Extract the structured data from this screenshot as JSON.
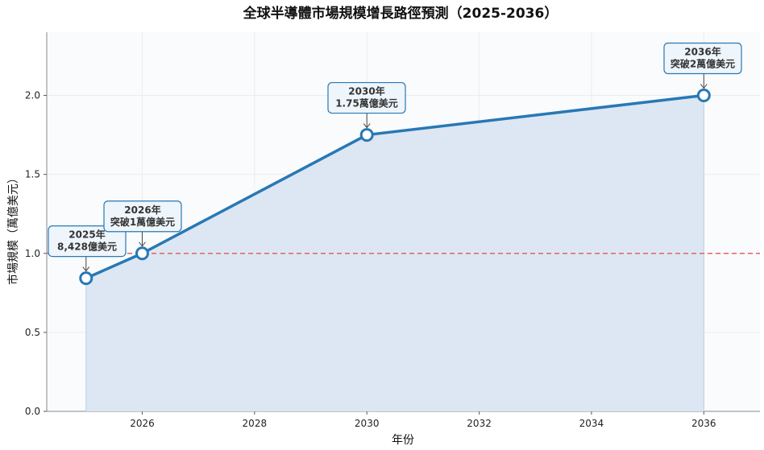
{
  "chart_data": {
    "type": "line",
    "title": "全球半導體市場規模增長路徑預測（2025-2036）",
    "xlabel": "年份",
    "ylabel": "市場規模（萬億美元）",
    "x": [
      2025,
      2026,
      2030,
      2036
    ],
    "y": [
      0.8428,
      1.0,
      1.75,
      2.0
    ],
    "xlim": [
      2024.3,
      2037.0
    ],
    "ylim": [
      0.0,
      2.4
    ],
    "xticks": [
      "2026",
      "2028",
      "2030",
      "2032",
      "2034",
      "2036"
    ],
    "yticks": [
      "0.0",
      "0.5",
      "1.0",
      "1.5",
      "2.0"
    ],
    "reference_line": {
      "y": 1.0,
      "style": "dashed",
      "color": "#e06666"
    },
    "fill_under_line": true,
    "grid": true,
    "colors": {
      "line": "#2878b5",
      "fill": "#dae6f2",
      "plot_background": "#fafbfc",
      "annotation_box": "#eef5fb"
    },
    "annotations": [
      {
        "x": 2025,
        "y": 0.8428,
        "lines": [
          "2025年",
          "8,428億美元"
        ]
      },
      {
        "x": 2026,
        "y": 1.0,
        "lines": [
          "2026年",
          "突破1萬億美元"
        ]
      },
      {
        "x": 2030,
        "y": 1.75,
        "lines": [
          "2030年",
          "1.75萬億美元"
        ]
      },
      {
        "x": 2036,
        "y": 2.0,
        "lines": [
          "2036年",
          "突破2萬億美元"
        ]
      }
    ]
  }
}
